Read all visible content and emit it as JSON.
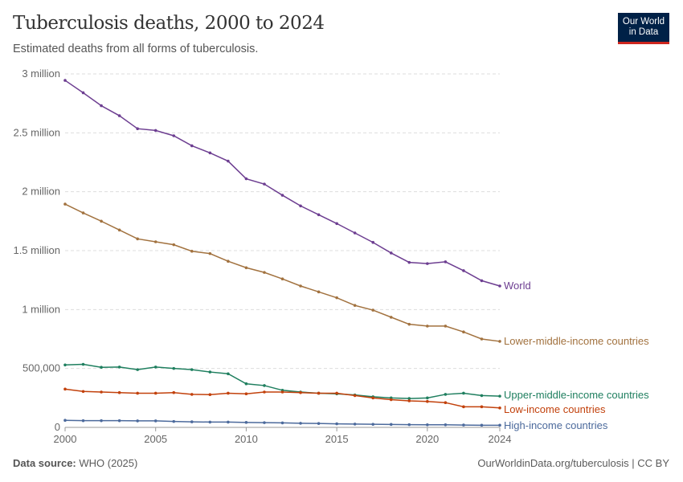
{
  "header": {
    "title": "Tuberculosis deaths, 2000 to 2024",
    "subtitle": "Estimated deaths from all forms of tuberculosis.",
    "logo": "Our World in Data",
    "logo_line1": "Our World",
    "logo_line2": "in Data"
  },
  "footer": {
    "source_label": "Data source:",
    "source": "WHO (2025)",
    "url": "OurWorldinData.org/tuberculosis | CC BY"
  },
  "chart_data": {
    "type": "line",
    "title": "Tuberculosis deaths, 2000 to 2024",
    "xlim": [
      2000,
      2024
    ],
    "ylim": [
      0,
      3000000
    ],
    "grid": true,
    "legend": "inline-right",
    "x_ticks": [
      2000,
      2005,
      2010,
      2015,
      2020,
      2024
    ],
    "y_ticks": [
      {
        "value": 0,
        "label": "0"
      },
      {
        "value": 500000,
        "label": "500,000"
      },
      {
        "value": 1000000,
        "label": "1 million"
      },
      {
        "value": 1500000,
        "label": "1.5 million"
      },
      {
        "value": 2000000,
        "label": "2 million"
      },
      {
        "value": 2500000,
        "label": "2.5 million"
      },
      {
        "value": 3000000,
        "label": "3 million"
      }
    ],
    "x": [
      2000,
      2001,
      2002,
      2003,
      2004,
      2005,
      2006,
      2007,
      2008,
      2009,
      2010,
      2011,
      2012,
      2013,
      2014,
      2015,
      2016,
      2017,
      2018,
      2019,
      2020,
      2021,
      2022,
      2023,
      2024
    ],
    "series": [
      {
        "name": "World",
        "color": "#6d3e91",
        "values": [
          2945000,
          2840000,
          2730000,
          2645000,
          2535000,
          2520000,
          2475000,
          2390000,
          2330000,
          2260000,
          2110000,
          2065000,
          1970000,
          1880000,
          1805000,
          1730000,
          1650000,
          1570000,
          1480000,
          1400000,
          1390000,
          1405000,
          1330000,
          1245000,
          1200000
        ]
      },
      {
        "name": "Lower-middle-income countries",
        "color": "#a2723f",
        "values": [
          1895000,
          1820000,
          1750000,
          1675000,
          1600000,
          1575000,
          1550000,
          1495000,
          1475000,
          1410000,
          1355000,
          1315000,
          1260000,
          1200000,
          1150000,
          1100000,
          1035000,
          995000,
          935000,
          875000,
          860000,
          860000,
          810000,
          750000,
          730000
        ]
      },
      {
        "name": "Upper-middle-income countries",
        "color": "#1f7f5f",
        "values": [
          530000,
          535000,
          510000,
          512000,
          490000,
          512000,
          500000,
          490000,
          470000,
          455000,
          370000,
          355000,
          315000,
          300000,
          290000,
          285000,
          275000,
          260000,
          250000,
          245000,
          250000,
          280000,
          290000,
          270000,
          265000
        ]
      },
      {
        "name": "Low-income countries",
        "color": "#c2410c",
        "values": [
          325000,
          305000,
          300000,
          295000,
          290000,
          290000,
          295000,
          280000,
          278000,
          290000,
          285000,
          300000,
          300000,
          295000,
          290000,
          290000,
          270000,
          250000,
          235000,
          225000,
          220000,
          210000,
          175000,
          175000,
          165000
        ]
      },
      {
        "name": "High-income countries",
        "color": "#4c6a9c",
        "values": [
          60000,
          57000,
          57000,
          57000,
          55000,
          55000,
          50000,
          47000,
          45000,
          45000,
          42000,
          40000,
          38000,
          35000,
          33000,
          30000,
          28000,
          26000,
          25000,
          23000,
          22000,
          22000,
          20000,
          18000,
          18000
        ]
      }
    ]
  }
}
